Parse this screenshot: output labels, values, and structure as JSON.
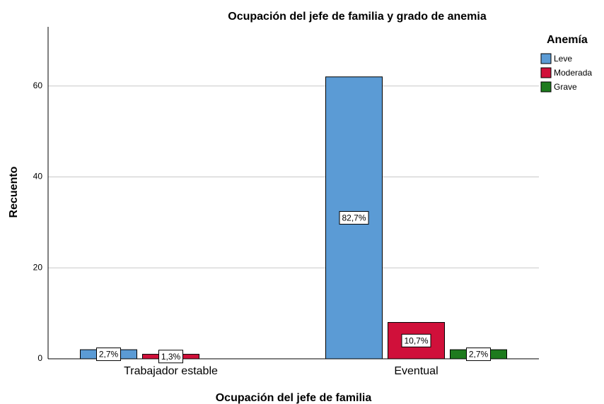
{
  "chart_data": {
    "type": "bar",
    "title": "Ocupación del jefe de familia y grado de anemia",
    "x_label": "Ocupación del jefe de familia",
    "y_label": "Recuento",
    "legend_title": "Anemía",
    "legend": "top-right",
    "grid": true,
    "categories": [
      "Trabajador estable",
      "Eventual"
    ],
    "series": [
      {
        "name": "Leve",
        "color": "#5b9bd5",
        "values": [
          2,
          62
        ],
        "data_labels": [
          "2,7%",
          "82,7%"
        ]
      },
      {
        "name": "Moderada",
        "color": "#d0103a",
        "values": [
          1,
          8
        ],
        "data_labels": [
          "1,3%",
          "10,7%"
        ]
      },
      {
        "name": "Grave",
        "color": "#1e7b1e",
        "values": [
          0,
          2
        ],
        "data_labels": [
          null,
          "2,7%"
        ]
      }
    ],
    "ylim": [
      0,
      73
    ],
    "yticks": [
      0,
      20,
      40,
      60
    ]
  }
}
